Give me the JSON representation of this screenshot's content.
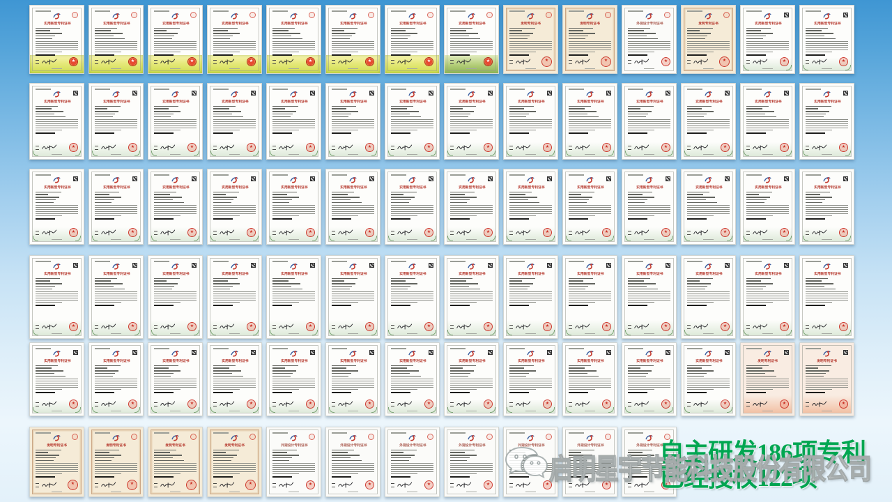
{
  "slide": {
    "headline_line1": "自主研发186项专利",
    "headline_line2": "已经授权122项",
    "headline_color": "#00a651",
    "watermark_company": "启明星宇节能科技股份有限公司",
    "watermark_icon": "wechat-icon"
  },
  "certificate_titles": {
    "utility": "实用新型专利证书",
    "invention": "发明专利证书",
    "design": "外观设计专利证书"
  },
  "certificate_colors": {
    "title_red": "#b5372c",
    "seal_red": "#c5281c",
    "yellow_band": "#d9e257",
    "green_band": "#8cb254",
    "cream_paper": "#f5ebd7",
    "corner_green": "#7da577"
  },
  "seal_star": "★",
  "rows": [
    {
      "certs": [
        "yellow",
        "yellow",
        "yellow",
        "yellow",
        "yellow",
        "yellow",
        "yellow",
        "green",
        "cream",
        "cream",
        "design",
        "cream",
        "whiteqr",
        "whiteqr"
      ]
    },
    {
      "certs": [
        "whiteqr",
        "whiteqr",
        "whiteqr",
        "whiteqr",
        "whiteqr",
        "whiteqr",
        "whiteqr",
        "whiteqr",
        "whiteqr",
        "whiteqr",
        "whiteqr",
        "whiteqr",
        "whiteqr",
        "whiteqr"
      ]
    },
    {
      "certs": [
        "whiteqr",
        "whiteqr",
        "whiteqr",
        "whiteqr",
        "whiteqr",
        "whiteqr",
        "whiteqr",
        "whiteqr",
        "whiteqr",
        "whiteqr",
        "whiteqr",
        "whiteqr",
        "whiteqr",
        "whiteqr"
      ]
    },
    {
      "certs": [
        "whiteqr",
        "whiteqr",
        "whiteqr",
        "whiteqr",
        "whiteqr",
        "whiteqr",
        "whiteqr",
        "whiteqr",
        "whiteqr",
        "whiteqr",
        "whiteqr",
        "whiteqr",
        "whiteqr",
        "whiteqr"
      ]
    },
    {
      "certs": [
        "whiteqr",
        "whiteqr",
        "whiteqr",
        "whiteqr",
        "whiteqr",
        "whiteqr",
        "whiteqr",
        "whiteqr",
        "whiteqr",
        "whiteqr",
        "whiteqr",
        "whiteqr",
        "redcream",
        "redcream"
      ]
    },
    {
      "certs": [
        "cream",
        "cream",
        "cream",
        "cream",
        "design",
        "design",
        "design",
        "design",
        "design",
        "design",
        "design"
      ]
    }
  ]
}
